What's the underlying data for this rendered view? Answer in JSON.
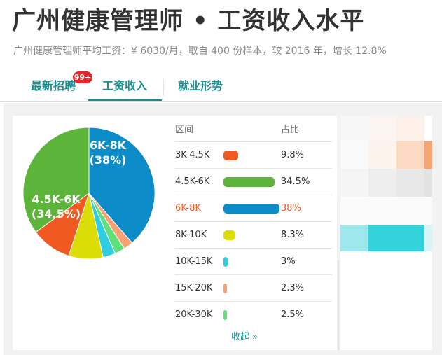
{
  "header": {
    "title": "广州健康管理师 • 工资收入水平",
    "subtitle": "广州健康管理师平均工资：¥ 6030/月，取自 400 份样本，较 2016 年，增长 12.8%"
  },
  "tabs": [
    {
      "label": "最新招聘",
      "badge": "99+",
      "active": false
    },
    {
      "label": "工资收入",
      "active": true
    },
    {
      "label": "就业形势",
      "active": false
    }
  ],
  "table": {
    "headers": {
      "range": "区间",
      "share": "占比"
    },
    "rows": [
      {
        "range": "3K-4.5K",
        "pct": "9.8%",
        "value": 9.8,
        "color": "#f05a22",
        "highlight": false
      },
      {
        "range": "4.5K-6K",
        "pct": "34.5%",
        "value": 34.5,
        "color": "#5cb53a",
        "highlight": false
      },
      {
        "range": "6K-8K",
        "pct": "38%",
        "value": 38,
        "color": "#0b8bc8",
        "highlight": true
      },
      {
        "range": "8K-10K",
        "pct": "8.3%",
        "value": 8.3,
        "color": "#dcdc06",
        "highlight": false
      },
      {
        "range": "10K-15K",
        "pct": "3%",
        "value": 3,
        "color": "#2ecde0",
        "highlight": false
      },
      {
        "range": "15K-20K",
        "pct": "2.3%",
        "value": 2.3,
        "color": "#f7a073",
        "highlight": false
      },
      {
        "range": "20K-30K",
        "pct": "2.5%",
        "value": 2.5,
        "color": "#60e07a",
        "highlight": false
      }
    ],
    "collapse_label": "收起 »"
  },
  "pie_labels": {
    "big1_range": "6K-8K",
    "big1_pct": "(38%)",
    "big2_range": "4.5K-6K",
    "big2_pct": "(34.5%)"
  },
  "chart_data": {
    "type": "pie",
    "categories": [
      "3K-4.5K",
      "4.5K-6K",
      "6K-8K",
      "8K-10K",
      "10K-15K",
      "15K-20K",
      "20K-30K"
    ],
    "values": [
      9.8,
      34.5,
      38,
      8.3,
      3,
      2.3,
      2.5
    ],
    "colors": [
      "#f05a22",
      "#5cb53a",
      "#0b8bc8",
      "#dcdc06",
      "#2ecde0",
      "#f7a073",
      "#60e07a"
    ]
  }
}
